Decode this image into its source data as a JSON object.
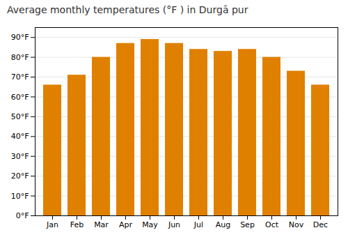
{
  "chart_data": {
    "type": "bar",
    "title": "Average monthly temperatures (°F ) in Durgā pur",
    "categories": [
      "Jan",
      "Feb",
      "Mar",
      "Apr",
      "May",
      "Jun",
      "Jul",
      "Aug",
      "Sep",
      "Oct",
      "Nov",
      "Dec"
    ],
    "values": [
      66,
      71,
      80,
      87,
      89,
      87,
      84,
      83,
      84,
      80,
      73,
      66
    ],
    "color": "#E08000",
    "ylim": [
      0,
      95
    ],
    "yticks": [
      {
        "value": 0,
        "label": "0°F"
      },
      {
        "value": 10,
        "label": "10°F"
      },
      {
        "value": 20,
        "label": "20°F"
      },
      {
        "value": 30,
        "label": "30°F"
      },
      {
        "value": 40,
        "label": "40°F"
      },
      {
        "value": 50,
        "label": "50°F"
      },
      {
        "value": 60,
        "label": "60°F"
      },
      {
        "value": 70,
        "label": "70°F"
      },
      {
        "value": 80,
        "label": "80°F"
      },
      {
        "value": 90,
        "label": "90°F"
      }
    ],
    "grid": true
  }
}
